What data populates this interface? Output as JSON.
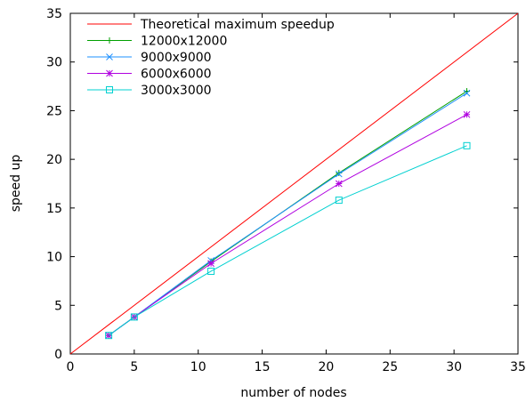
{
  "chart_data": {
    "type": "line",
    "title": "",
    "xlabel": "number of nodes",
    "ylabel": "speed up",
    "xlim": [
      0,
      35
    ],
    "ylim": [
      0,
      35
    ],
    "xticks": [
      0,
      5,
      10,
      15,
      20,
      25,
      30,
      35
    ],
    "yticks": [
      0,
      5,
      10,
      15,
      20,
      25,
      30,
      35
    ],
    "grid": false,
    "legend_position": "top-left",
    "series": [
      {
        "name": "Theoretical maximum speedup",
        "color": "#ff0000",
        "marker": "none",
        "x": [
          0,
          35
        ],
        "y": [
          0,
          35
        ]
      },
      {
        "name": "12000x12000",
        "color": "#00a000",
        "marker": "plus",
        "x": [
          3,
          5,
          11,
          21,
          31
        ],
        "y": [
          1.9,
          3.8,
          9.5,
          18.6,
          27.0
        ]
      },
      {
        "name": "9000x9000",
        "color": "#1e90ff",
        "marker": "cross",
        "x": [
          3,
          5,
          11,
          21,
          31
        ],
        "y": [
          1.9,
          3.8,
          9.6,
          18.5,
          26.8
        ]
      },
      {
        "name": "6000x6000",
        "color": "#b000e0",
        "marker": "star",
        "x": [
          3,
          5,
          11,
          21,
          31
        ],
        "y": [
          1.9,
          3.8,
          9.3,
          17.5,
          24.6
        ]
      },
      {
        "name": "3000x3000",
        "color": "#00d0d0",
        "marker": "square",
        "x": [
          3,
          5,
          11,
          21,
          31
        ],
        "y": [
          1.9,
          3.8,
          8.5,
          15.8,
          21.4
        ]
      }
    ]
  }
}
